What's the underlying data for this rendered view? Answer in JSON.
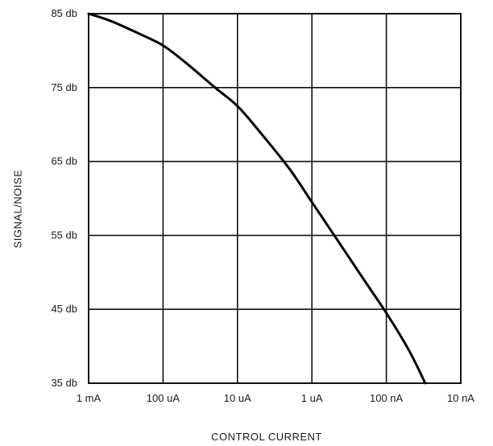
{
  "chart_data": {
    "type": "line",
    "title": "",
    "xlabel": "CONTROL CURRENT",
    "ylabel": "SIGNAL/NOISE",
    "x_scale": "log",
    "x_direction": "decreasing",
    "x_unit": "A",
    "x_ticks": [
      {
        "label": "1 mA",
        "value": 0.001
      },
      {
        "label": "100 uA",
        "value": 0.0001
      },
      {
        "label": "10 uA",
        "value": 1e-05
      },
      {
        "label": "1 uA",
        "value": 1e-06
      },
      {
        "label": "100 nA",
        "value": 1e-07
      },
      {
        "label": "10 nA",
        "value": 1e-08
      }
    ],
    "xlim": [
      0.001,
      1e-08
    ],
    "y_unit": "db",
    "y_ticks": [
      {
        "label": "85 db",
        "value": 85
      },
      {
        "label": "75 db",
        "value": 75
      },
      {
        "label": "65 db",
        "value": 65
      },
      {
        "label": "55 db",
        "value": 55
      },
      {
        "label": "45 db",
        "value": 45
      },
      {
        "label": "35 db",
        "value": 35
      }
    ],
    "ylim": [
      35,
      85
    ],
    "grid": true,
    "series": [
      {
        "x": [
          0.001,
          0.0005,
          0.0002,
          0.0001,
          5e-05,
          2e-05,
          1e-05,
          5e-06,
          2e-06,
          1e-06,
          5e-07,
          2e-07,
          1e-07,
          5e-08,
          3e-08
        ],
        "y": [
          85,
          84,
          82.2,
          80.7,
          78.4,
          75,
          72.5,
          69,
          64,
          59.5,
          55,
          49,
          44.5,
          39.5,
          35
        ]
      }
    ]
  }
}
